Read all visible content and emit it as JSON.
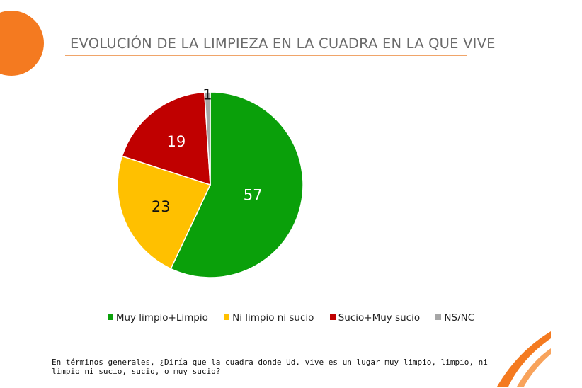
{
  "page": {
    "title": "EVOLUCIÓN DE LA LIMPIEZA EN LA CUADRA EN LA QUE VIVE",
    "question": "En términos generales, ¿Diría que la cuadra donde Ud. vive es un lugar muy limpio, limpio, ni limpio ni sucio, sucio, o muy sucio?",
    "accent_color": "#f47a20"
  },
  "chart_data": {
    "type": "pie",
    "title": "",
    "legend_position": "bottom",
    "slices": [
      {
        "label": "Muy limpio+Limpio",
        "value": 57,
        "display": "57",
        "color": "#0aa00a"
      },
      {
        "label": "Ni limpio ni sucio",
        "value": 23,
        "display": "23",
        "color": "#ffc000"
      },
      {
        "label": "Sucio+Muy sucio",
        "value": 19,
        "display": "19",
        "color": "#c00000"
      },
      {
        "label": "NS/NC",
        "value": 1,
        "display": "1",
        "color": "#a6a6a6"
      }
    ]
  }
}
